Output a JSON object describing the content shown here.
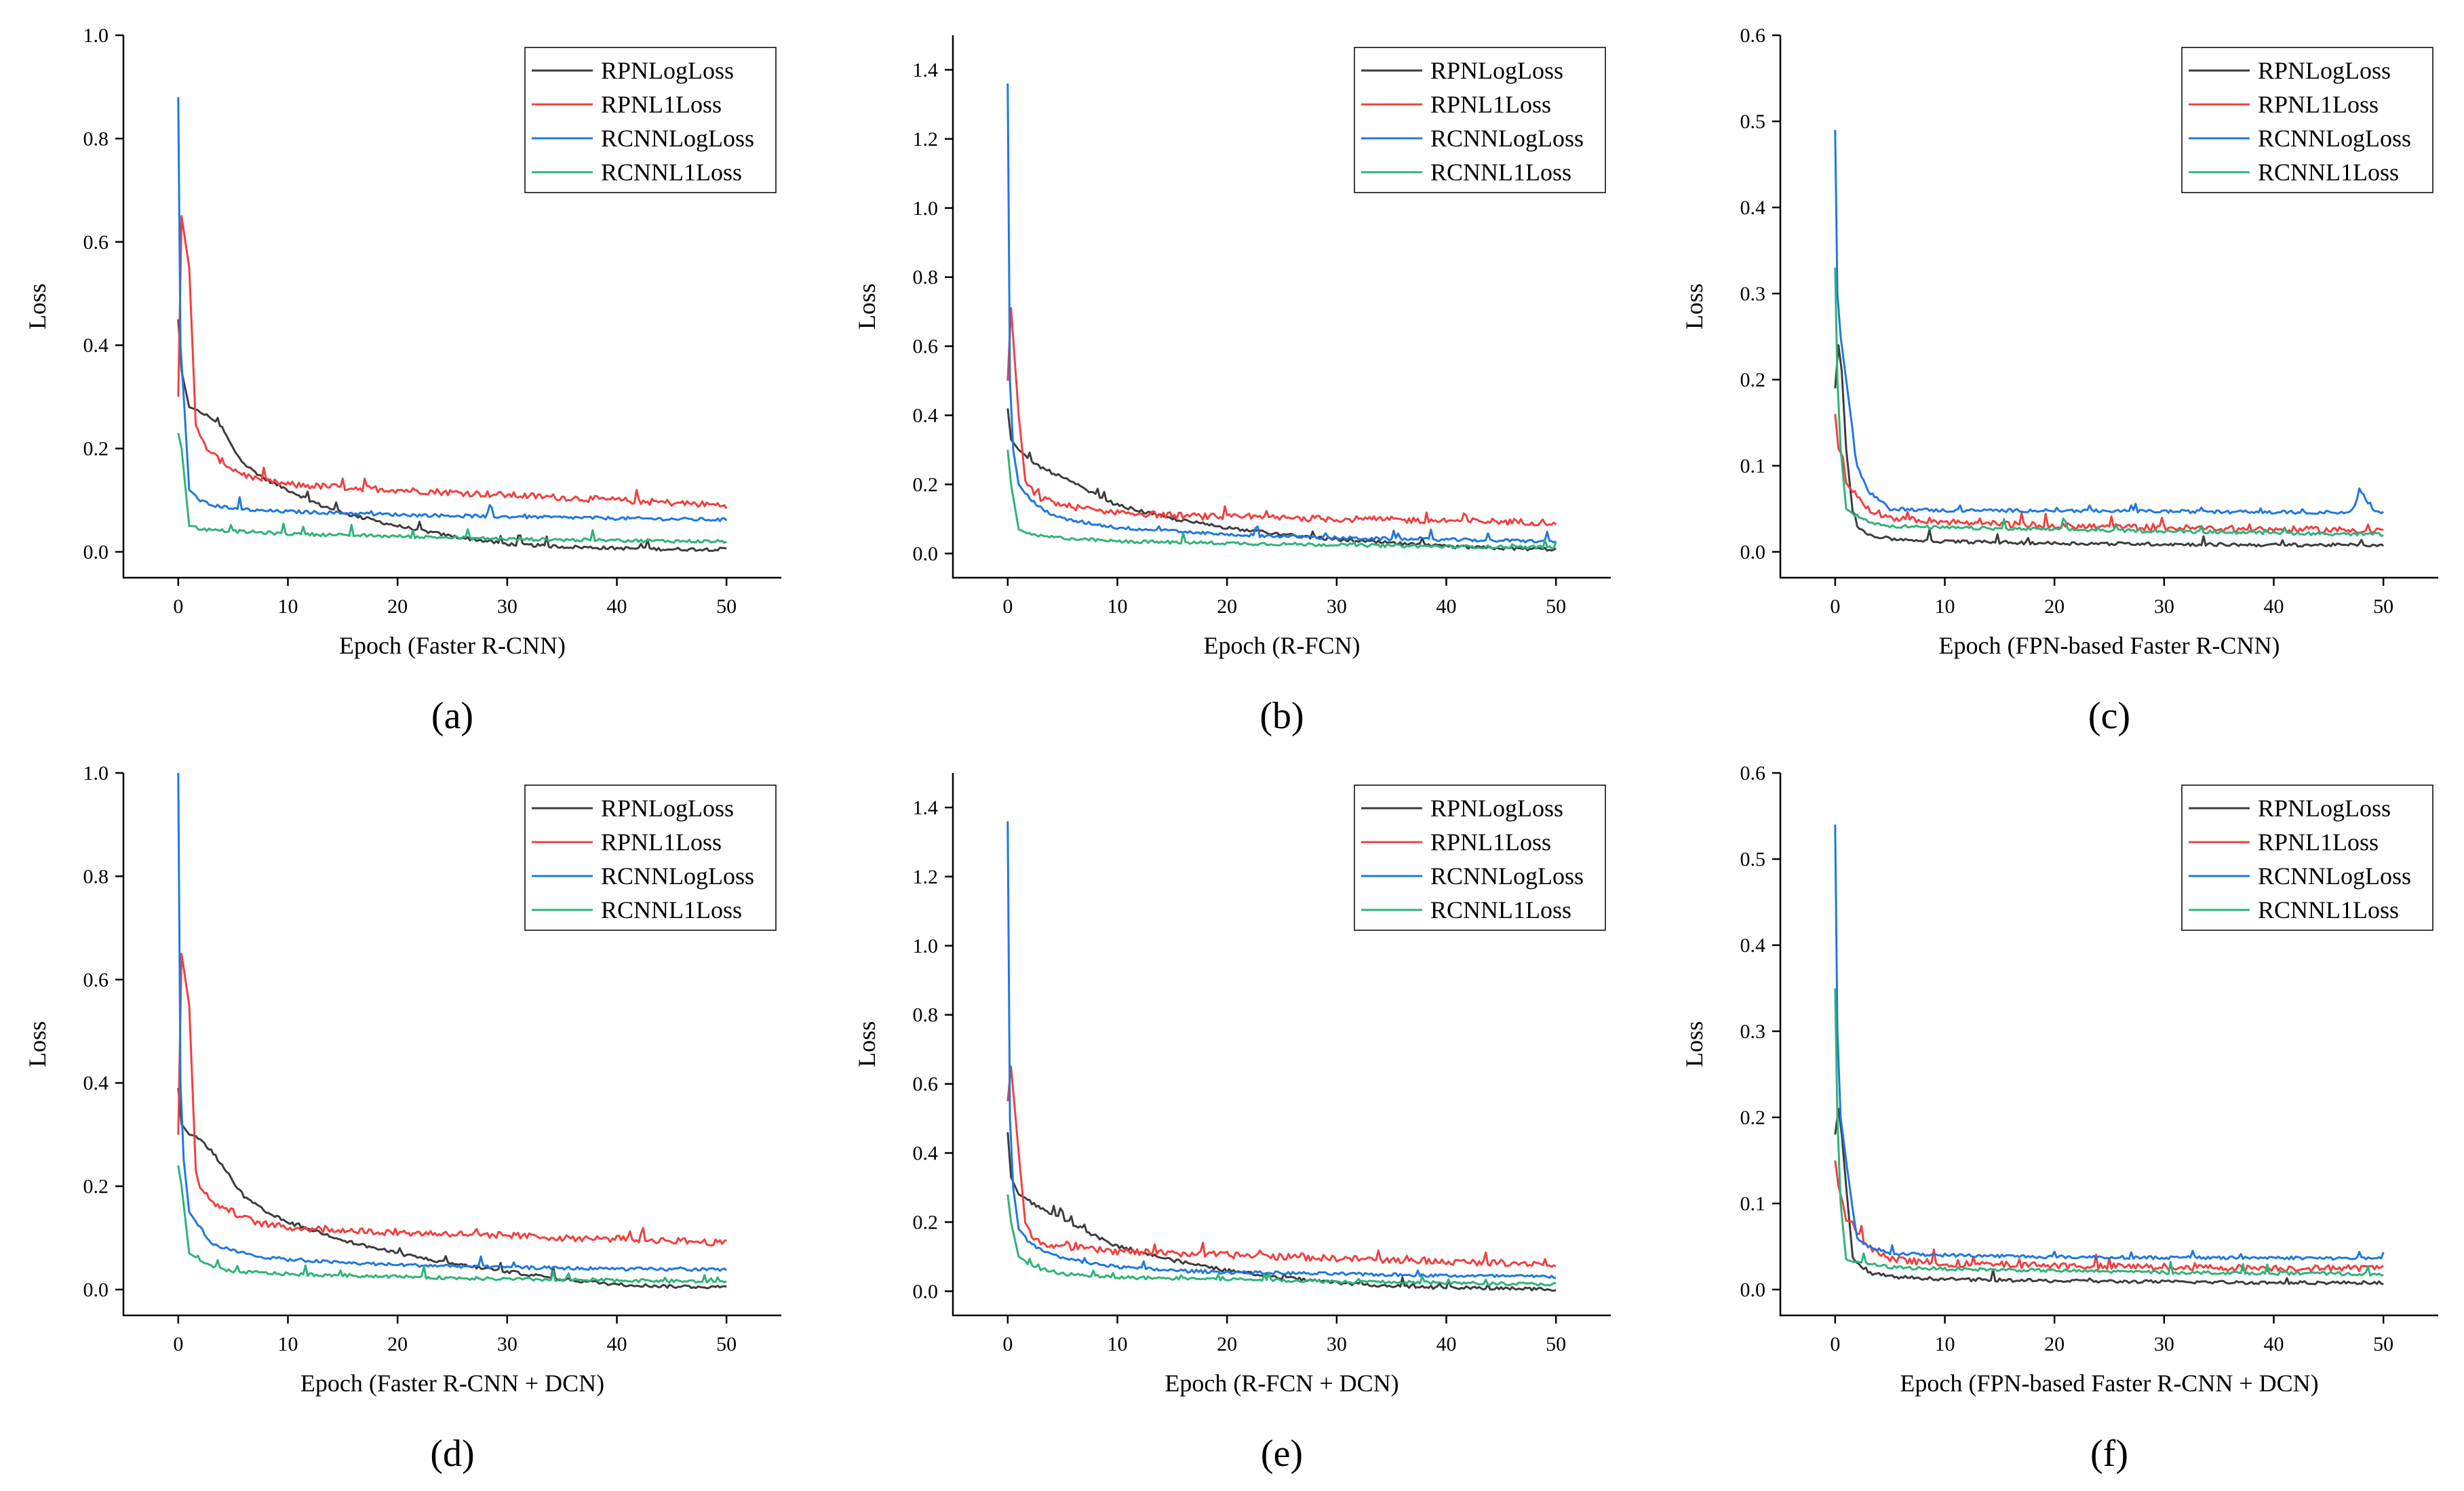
{
  "figure": {
    "series_names": [
      "RPNLogLoss",
      "RPNL1Loss",
      "RCNNLogLoss",
      "RCNNL1Loss"
    ],
    "colors": {
      "RPNLogLoss": "#3d3d3d",
      "RPNL1Loss": "#f04040",
      "RCNNLogLoss": "#1f78e0",
      "RCNNL1Loss": "#2fb37a",
      "axis": "#000000",
      "background": "#ffffff"
    }
  },
  "chart_data": [
    {
      "type": "line",
      "panel_label": "(a)",
      "title": "",
      "xlabel": "Epoch (Faster R-CNN)",
      "ylabel": "Loss",
      "xlim": [
        -5,
        55
      ],
      "ylim": [
        -0.05,
        1.0
      ],
      "xticks": [
        0,
        10,
        20,
        30,
        40,
        50
      ],
      "yticks": [
        0.0,
        0.2,
        0.4,
        0.6,
        0.8,
        1.0
      ],
      "ytick_labels": [
        "0.0",
        "0.2",
        "0.4",
        "0.6",
        "0.8",
        "1.0"
      ],
      "legend": "top-right",
      "grid": false,
      "series": [
        {
          "name": "RPNLogLoss",
          "x": [
            0,
            0.3,
            1,
            2,
            3,
            4,
            5,
            6,
            8,
            10,
            13,
            16,
            20,
            25,
            30,
            35,
            40,
            45,
            50
          ],
          "values": [
            0.45,
            0.35,
            0.28,
            0.27,
            0.26,
            0.24,
            0.2,
            0.17,
            0.14,
            0.12,
            0.09,
            0.07,
            0.05,
            0.03,
            0.015,
            0.01,
            0.007,
            0.005,
            0.005
          ]
        },
        {
          "name": "RPNL1Loss",
          "x": [
            0,
            0.3,
            1,
            1.5,
            2,
            3,
            5,
            7,
            10,
            15,
            20,
            25,
            30,
            35,
            40,
            45,
            50
          ],
          "values": [
            0.3,
            0.65,
            0.55,
            0.25,
            0.22,
            0.19,
            0.16,
            0.14,
            0.13,
            0.125,
            0.12,
            0.115,
            0.11,
            0.105,
            0.1,
            0.095,
            0.09
          ]
        },
        {
          "name": "RCNNLogLoss",
          "x": [
            0,
            0.2,
            0.5,
            1,
            2,
            3,
            5,
            7,
            10,
            15,
            20,
            30,
            40,
            50
          ],
          "values": [
            0.88,
            0.4,
            0.3,
            0.12,
            0.1,
            0.09,
            0.085,
            0.08,
            0.078,
            0.075,
            0.072,
            0.068,
            0.065,
            0.062
          ]
        },
        {
          "name": "RCNNL1Loss",
          "x": [
            0,
            0.3,
            1,
            2,
            3,
            5,
            10,
            20,
            30,
            40,
            50
          ],
          "values": [
            0.23,
            0.2,
            0.05,
            0.045,
            0.042,
            0.04,
            0.035,
            0.03,
            0.025,
            0.022,
            0.02
          ]
        }
      ]
    },
    {
      "type": "line",
      "panel_label": "(b)",
      "title": "",
      "xlabel": "Epoch (R-FCN)",
      "ylabel": "Loss",
      "xlim": [
        -5,
        55
      ],
      "ylim": [
        -0.07,
        1.5
      ],
      "xticks": [
        0,
        10,
        20,
        30,
        40,
        50
      ],
      "yticks": [
        0.0,
        0.2,
        0.4,
        0.6,
        0.8,
        1.0,
        1.2,
        1.4
      ],
      "ytick_labels": [
        "0.0",
        "0.2",
        "0.4",
        "0.6",
        "0.8",
        "1.0",
        "1.2",
        "1.4"
      ],
      "legend": "top-right",
      "grid": false,
      "series": [
        {
          "name": "RPNLogLoss",
          "x": [
            0,
            0.3,
            1,
            2,
            3,
            5,
            8,
            10,
            15,
            20,
            25,
            30,
            35,
            40,
            45,
            50
          ],
          "values": [
            0.42,
            0.33,
            0.3,
            0.27,
            0.25,
            0.22,
            0.17,
            0.14,
            0.1,
            0.075,
            0.055,
            0.04,
            0.03,
            0.02,
            0.015,
            0.012
          ]
        },
        {
          "name": "RPNL1Loss",
          "x": [
            0,
            0.3,
            1,
            1.5,
            2,
            3,
            5,
            8,
            10,
            15,
            20,
            30,
            40,
            50
          ],
          "values": [
            0.5,
            0.71,
            0.4,
            0.22,
            0.19,
            0.16,
            0.14,
            0.125,
            0.12,
            0.11,
            0.105,
            0.1,
            0.095,
            0.09
          ]
        },
        {
          "name": "RCNNLogLoss",
          "x": [
            0,
            0.2,
            0.5,
            1,
            2,
            3,
            5,
            8,
            10,
            15,
            20,
            30,
            40,
            50
          ],
          "values": [
            1.36,
            0.5,
            0.3,
            0.2,
            0.16,
            0.13,
            0.1,
            0.085,
            0.075,
            0.065,
            0.055,
            0.045,
            0.04,
            0.035
          ]
        },
        {
          "name": "RCNNL1Loss",
          "x": [
            0,
            0.3,
            1,
            2,
            3,
            5,
            10,
            20,
            30,
            40,
            50
          ],
          "values": [
            0.3,
            0.2,
            0.07,
            0.055,
            0.05,
            0.045,
            0.035,
            0.03,
            0.025,
            0.02,
            0.018
          ]
        }
      ]
    },
    {
      "type": "line",
      "panel_label": "(c)",
      "title": "",
      "xlabel": "Epoch (FPN-based Faster R-CNN)",
      "ylabel": "Loss",
      "xlim": [
        -5,
        55
      ],
      "ylim": [
        -0.03,
        0.6
      ],
      "xticks": [
        0,
        10,
        20,
        30,
        40,
        50
      ],
      "yticks": [
        0.0,
        0.1,
        0.2,
        0.3,
        0.4,
        0.5,
        0.6
      ],
      "ytick_labels": [
        "0.0",
        "0.1",
        "0.2",
        "0.3",
        "0.4",
        "0.5",
        "0.6"
      ],
      "legend": "top-right",
      "grid": false,
      "series": [
        {
          "name": "RPNLogLoss",
          "x": [
            0,
            0.3,
            0.6,
            1,
            1.5,
            2,
            3,
            5,
            10,
            20,
            30,
            40,
            50
          ],
          "values": [
            0.19,
            0.24,
            0.21,
            0.12,
            0.05,
            0.03,
            0.02,
            0.015,
            0.012,
            0.01,
            0.009,
            0.008,
            0.008
          ]
        },
        {
          "name": "RPNL1Loss",
          "x": [
            0,
            0.3,
            0.7,
            1,
            1.5,
            2,
            3,
            5,
            10,
            20,
            30,
            40,
            50
          ],
          "values": [
            0.16,
            0.12,
            0.11,
            0.08,
            0.075,
            0.065,
            0.05,
            0.04,
            0.035,
            0.03,
            0.028,
            0.026,
            0.025
          ]
        },
        {
          "name": "RCNNLogLoss",
          "x": [
            0,
            0.2,
            0.5,
            1,
            1.5,
            2,
            3,
            5,
            10,
            20,
            30,
            40,
            47,
            48,
            49,
            50
          ],
          "values": [
            0.49,
            0.3,
            0.25,
            0.2,
            0.14,
            0.1,
            0.07,
            0.05,
            0.048,
            0.048,
            0.047,
            0.046,
            0.046,
            0.07,
            0.048,
            0.045
          ]
        },
        {
          "name": "RCNNL1Loss",
          "x": [
            0,
            0.2,
            0.5,
            1,
            1.5,
            2,
            3,
            5,
            10,
            20,
            30,
            40,
            50
          ],
          "values": [
            0.33,
            0.2,
            0.12,
            0.05,
            0.045,
            0.042,
            0.035,
            0.03,
            0.028,
            0.026,
            0.024,
            0.022,
            0.02
          ]
        }
      ]
    },
    {
      "type": "line",
      "panel_label": "(d)",
      "title": "",
      "xlabel": "Epoch (Faster R-CNN + DCN)",
      "ylabel": "Loss",
      "xlim": [
        -5,
        55
      ],
      "ylim": [
        -0.05,
        1.0
      ],
      "xticks": [
        0,
        10,
        20,
        30,
        40,
        50
      ],
      "yticks": [
        0.0,
        0.2,
        0.4,
        0.6,
        0.8,
        1.0
      ],
      "ytick_labels": [
        "0.0",
        "0.2",
        "0.4",
        "0.6",
        "0.8",
        "1.0"
      ],
      "legend": "top-right",
      "grid": false,
      "series": [
        {
          "name": "RPNLogLoss",
          "x": [
            0,
            0.3,
            1,
            2,
            3,
            4,
            5,
            6,
            8,
            10,
            13,
            16,
            20,
            25,
            30,
            35,
            40,
            45,
            50
          ],
          "values": [
            0.39,
            0.32,
            0.3,
            0.29,
            0.27,
            0.24,
            0.21,
            0.18,
            0.15,
            0.13,
            0.11,
            0.09,
            0.07,
            0.05,
            0.035,
            0.02,
            0.01,
            0.006,
            0.005
          ]
        },
        {
          "name": "RPNL1Loss",
          "x": [
            0,
            0.3,
            1,
            1.5,
            2,
            3,
            5,
            7,
            10,
            15,
            20,
            25,
            30,
            35,
            40,
            45,
            50
          ],
          "values": [
            0.3,
            0.65,
            0.55,
            0.24,
            0.2,
            0.17,
            0.15,
            0.13,
            0.12,
            0.115,
            0.11,
            0.108,
            0.105,
            0.1,
            0.098,
            0.095,
            0.09
          ]
        },
        {
          "name": "RCNNLogLoss",
          "x": [
            0,
            0.2,
            0.5,
            1,
            2,
            3,
            5,
            7,
            10,
            15,
            20,
            30,
            40,
            50
          ],
          "values": [
            1.0,
            0.4,
            0.25,
            0.15,
            0.12,
            0.09,
            0.075,
            0.065,
            0.058,
            0.052,
            0.048,
            0.043,
            0.04,
            0.038
          ]
        },
        {
          "name": "RCNNL1Loss",
          "x": [
            0,
            0.3,
            1,
            2,
            3,
            5,
            10,
            20,
            30,
            40,
            50
          ],
          "values": [
            0.24,
            0.2,
            0.07,
            0.055,
            0.045,
            0.035,
            0.03,
            0.025,
            0.02,
            0.018,
            0.015
          ]
        }
      ]
    },
    {
      "type": "line",
      "panel_label": "(e)",
      "title": "",
      "xlabel": "Epoch (R-FCN + DCN)",
      "ylabel": "Loss",
      "xlim": [
        -5,
        55
      ],
      "ylim": [
        -0.07,
        1.5
      ],
      "xticks": [
        0,
        10,
        20,
        30,
        40,
        50
      ],
      "yticks": [
        0.0,
        0.2,
        0.4,
        0.6,
        0.8,
        1.0,
        1.2,
        1.4
      ],
      "ytick_labels": [
        "0.0",
        "0.2",
        "0.4",
        "0.6",
        "0.8",
        "1.0",
        "1.2",
        "1.4"
      ],
      "legend": "top-right",
      "grid": false,
      "series": [
        {
          "name": "RPNLogLoss",
          "x": [
            0,
            0.3,
            1,
            2,
            3,
            5,
            8,
            10,
            15,
            20,
            25,
            30,
            35,
            40,
            45,
            50
          ],
          "values": [
            0.46,
            0.33,
            0.28,
            0.26,
            0.24,
            0.21,
            0.16,
            0.13,
            0.09,
            0.06,
            0.04,
            0.025,
            0.015,
            0.01,
            0.008,
            0.006
          ]
        },
        {
          "name": "RPNL1Loss",
          "x": [
            0,
            0.3,
            1,
            1.5,
            2,
            3,
            5,
            8,
            10,
            15,
            20,
            30,
            40,
            50
          ],
          "values": [
            0.55,
            0.65,
            0.4,
            0.2,
            0.17,
            0.14,
            0.13,
            0.12,
            0.115,
            0.11,
            0.105,
            0.095,
            0.085,
            0.08
          ]
        },
        {
          "name": "RCNNLogLoss",
          "x": [
            0,
            0.2,
            0.5,
            1,
            2,
            3,
            5,
            8,
            10,
            15,
            20,
            30,
            40,
            50
          ],
          "values": [
            1.36,
            0.5,
            0.3,
            0.18,
            0.14,
            0.12,
            0.095,
            0.08,
            0.07,
            0.06,
            0.055,
            0.05,
            0.045,
            0.042
          ]
        },
        {
          "name": "RCNNL1Loss",
          "x": [
            0,
            0.3,
            1,
            2,
            3,
            5,
            10,
            20,
            30,
            40,
            50
          ],
          "values": [
            0.28,
            0.2,
            0.1,
            0.075,
            0.065,
            0.05,
            0.04,
            0.035,
            0.028,
            0.024,
            0.02
          ]
        }
      ]
    },
    {
      "type": "line",
      "panel_label": "(f)",
      "title": "",
      "xlabel": "Epoch (FPN-based Faster R-CNN + DCN)",
      "ylabel": "Loss",
      "xlim": [
        -5,
        55
      ],
      "ylim": [
        -0.03,
        0.6
      ],
      "xticks": [
        0,
        10,
        20,
        30,
        40,
        50
      ],
      "yticks": [
        0.0,
        0.1,
        0.2,
        0.3,
        0.4,
        0.5,
        0.6
      ],
      "ytick_labels": [
        "0.0",
        "0.1",
        "0.2",
        "0.3",
        "0.4",
        "0.5",
        "0.6"
      ],
      "legend": "top-right",
      "grid": false,
      "series": [
        {
          "name": "RPNLogLoss",
          "x": [
            0,
            0.3,
            0.6,
            1,
            1.5,
            2,
            3,
            5,
            10,
            20,
            30,
            40,
            50
          ],
          "values": [
            0.18,
            0.21,
            0.18,
            0.12,
            0.04,
            0.03,
            0.02,
            0.015,
            0.012,
            0.01,
            0.009,
            0.008,
            0.008
          ]
        },
        {
          "name": "RPNL1Loss",
          "x": [
            0,
            0.3,
            0.7,
            1,
            1.5,
            2,
            3,
            5,
            10,
            20,
            30,
            40,
            50
          ],
          "values": [
            0.15,
            0.12,
            0.1,
            0.08,
            0.08,
            0.065,
            0.05,
            0.035,
            0.03,
            0.028,
            0.026,
            0.025,
            0.025
          ]
        },
        {
          "name": "RCNNLogLoss",
          "x": [
            0,
            0.2,
            0.5,
            1,
            1.5,
            2,
            3,
            5,
            10,
            20,
            30,
            40,
            50
          ],
          "values": [
            0.54,
            0.3,
            0.2,
            0.15,
            0.1,
            0.06,
            0.05,
            0.042,
            0.04,
            0.038,
            0.037,
            0.037,
            0.036
          ]
        },
        {
          "name": "RCNNL1Loss",
          "x": [
            0,
            0.2,
            0.5,
            1,
            1.5,
            2,
            3,
            5,
            10,
            20,
            30,
            40,
            50
          ],
          "values": [
            0.35,
            0.2,
            0.1,
            0.035,
            0.033,
            0.032,
            0.03,
            0.026,
            0.024,
            0.022,
            0.02,
            0.019,
            0.018
          ]
        }
      ]
    }
  ]
}
